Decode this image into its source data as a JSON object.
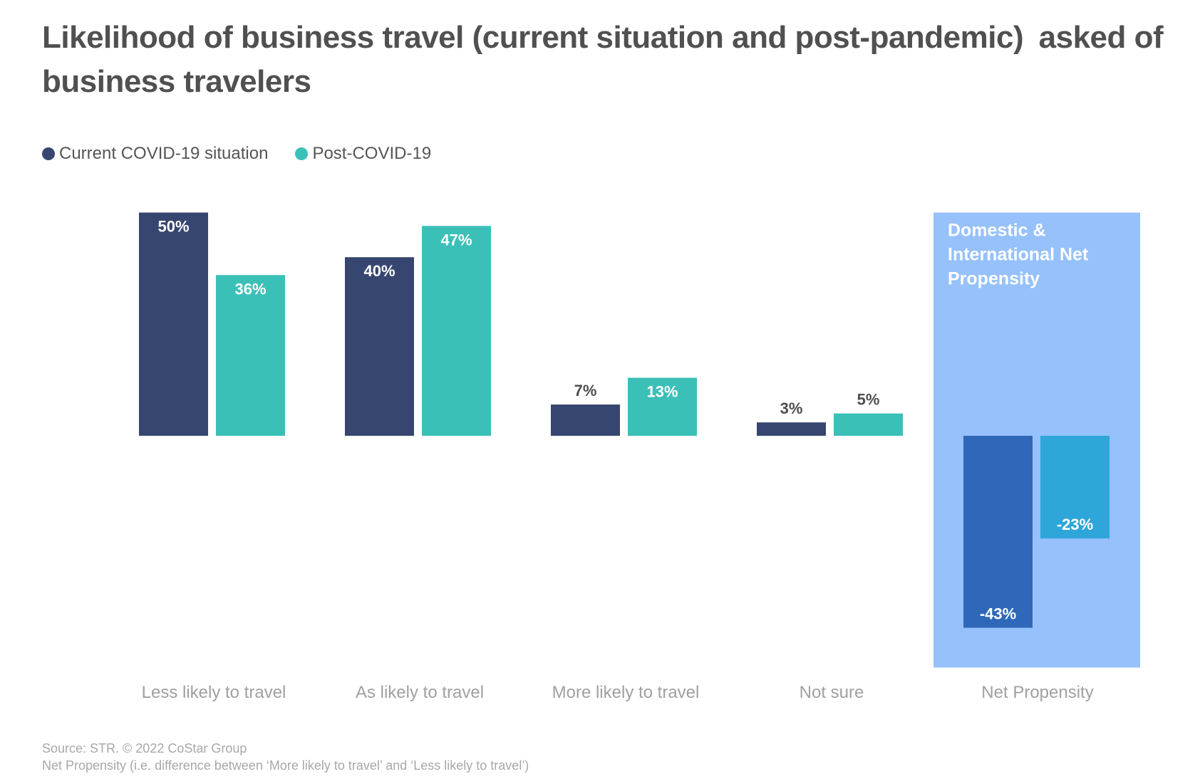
{
  "title": "Likelihood of business travel (current situation and post-pandemic) asked of business travelers",
  "colors": {
    "current": "#374670",
    "post": "#3bc0b8",
    "net_current": "#2f68b9",
    "net_post": "#2ea6d9",
    "net_panel": "#96c1fb",
    "category_label": "#a0a0a0"
  },
  "chart_data": {
    "type": "bar",
    "categories": [
      "Less likely to travel",
      "As likely to travel",
      "More likely to travel",
      "Not sure",
      "Net Propensity"
    ],
    "series": [
      {
        "name": "Current COVID-19 situation",
        "values": [
          50,
          40,
          7,
          3,
          -43
        ],
        "labels": [
          "50%",
          "40%",
          "7%",
          "3%",
          "-43%"
        ]
      },
      {
        "name": "Post-COVID-19",
        "values": [
          36,
          47,
          13,
          5,
          -23
        ],
        "labels": [
          "36%",
          "47%",
          "13%",
          "5%",
          "-23%"
        ]
      }
    ],
    "ylim": [
      -50,
      50
    ],
    "grid": false,
    "legend_position": "top-left",
    "highlight_panel": {
      "category": "Net Propensity",
      "label": "Domestic & International Net Propensity"
    }
  },
  "footer": {
    "source": "Source: STR. © 2022 CoStar Group",
    "note": "Net Propensity (i.e. difference between ‘More likely to travel’ and ‘Less likely to travel’)"
  }
}
